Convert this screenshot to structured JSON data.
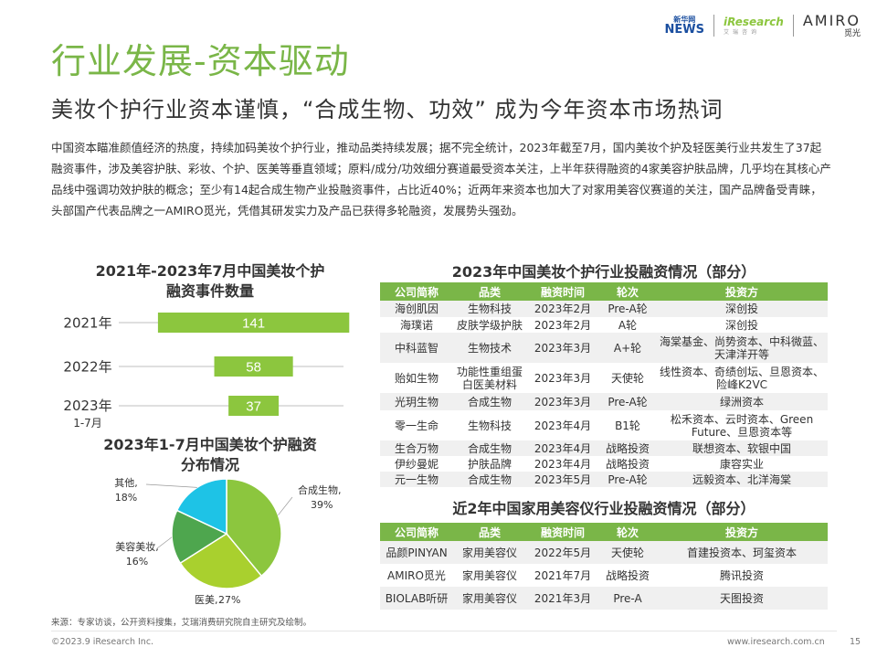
{
  "header": {
    "logo_news_top": "新华网",
    "logo_news_bottom": "NEWS",
    "logo_iresearch": "iResearch",
    "logo_iresearch_sub": "艾瑞咨询",
    "logo_amiro": "AMIRO",
    "logo_amiro_sub": "觅光"
  },
  "title": "行业发展-资本驱动",
  "subtitle": "美妆个护行业资本谨慎，“合成生物、功效” 成为今年资本市场热词",
  "intro": "中国资本瞄准颜值经济的热度，持续加码美妆个护行业，推动品类持续发展；据不完全统计，2023年截至7月，国内美妆个护及轻医美行业共发生了37起融资事件，涉及美容护肤、彩妆、个护、医美等垂直领域；原料/成分/功效细分赛道最受资本关注，上半年获得融资的4家美容护肤品牌，几乎均在其核心产品线中强调功效护肤的概念；至少有14起合成生物产业投融资事件，占比近40%；近两年来资本也加大了对家用美容仪赛道的关注，国产品牌备受青睐，头部国产代表品牌之一AMIRO觅光，凭借其研发实力及产品已获得多轮融资，发展势头强劲。",
  "chart_data": [
    {
      "type": "bar",
      "orientation": "horizontal",
      "title_line1": "2021年-2023年7月中国美妆个护",
      "title_line2": "融资事件数量",
      "categories": [
        "2021年",
        "2022年",
        "2023年\n1-7月"
      ],
      "values": [
        141,
        58,
        37
      ],
      "color": "#8cc63e",
      "xlim": [
        0,
        160
      ]
    },
    {
      "type": "pie",
      "title_line1": "2023年1-7月中国美妆个护融资",
      "title_line2": "分布情况",
      "slices": [
        {
          "label": "合成生物,",
          "pct_label": "39%",
          "value": 39,
          "color": "#8cc63e"
        },
        {
          "label": "医美,",
          "pct_label": "27%",
          "value": 27,
          "color": "#a9d02e"
        },
        {
          "label": "美容美妆,",
          "pct_label": "16%",
          "value": 16,
          "color": "#4ea64e"
        },
        {
          "label": "其他,",
          "pct_label": "18%",
          "value": 18,
          "color": "#1ec3e6"
        }
      ]
    },
    {
      "type": "table",
      "title": "2023年中国美妆个护行业投融资情况（部分）",
      "headers": [
        "公司简称",
        "品类",
        "融资时间",
        "轮次",
        "投资方"
      ],
      "rows": [
        [
          "海创肌因",
          "生物科技",
          "2023年2月",
          "Pre-A轮",
          "深创投"
        ],
        [
          "海璞诺",
          "皮肤学级护肤",
          "2023年2月",
          "A轮",
          "深创投"
        ],
        [
          "中科蓝智",
          "生物技术",
          "2023年3月",
          "A+轮",
          "海棠基金、尚势资本、中科微蓝、天津洋开等"
        ],
        [
          "贻如生物",
          "功能性重组蛋白医美材料",
          "2023年3月",
          "天使轮",
          "线性资本、奇绩创坛、旦恩资本、险峰K2VC"
        ],
        [
          "光玥生物",
          "合成生物",
          "2023年3月",
          "Pre-A轮",
          "绿洲资本"
        ],
        [
          "零一生命",
          "生物科技",
          "2023年4月",
          "B1轮",
          "松禾资本、云时资本、Green Future、旦恩资本等"
        ],
        [
          "生合万物",
          "合成生物",
          "2023年4月",
          "战略投资",
          "联想资本、软银中国"
        ],
        [
          "伊纱曼妮",
          "护肤品牌",
          "2023年4月",
          "战略投资",
          "康容实业"
        ],
        [
          "元一生物",
          "合成生物",
          "2023年5月",
          "Pre-A轮",
          "远毅资本、北洋海棠"
        ]
      ]
    },
    {
      "type": "table",
      "title": "近2年中国家用美容仪行业投融资情况（部分）",
      "headers": [
        "公司简称",
        "品类",
        "融资时间",
        "轮次",
        "投资方"
      ],
      "rows": [
        [
          "品颜PINYAN",
          "家用美容仪",
          "2022年5月",
          "天使轮",
          "首建投资本、珂玺资本"
        ],
        [
          "AMIRO觅光",
          "家用美容仪",
          "2021年7月",
          "战略投资",
          "腾讯投资"
        ],
        [
          "BIOLAB听研",
          "家用美容仪",
          "2021年3月",
          "Pre-A",
          "天图投资"
        ]
      ]
    }
  ],
  "footer": {
    "source": "来源：专家访谈，公开资料搜集，艾瑞消费研究院自主研究及绘制。",
    "copyright": "©2023.9 iResearch Inc.",
    "site": "www.iresearch.com.cn",
    "page": "15"
  }
}
